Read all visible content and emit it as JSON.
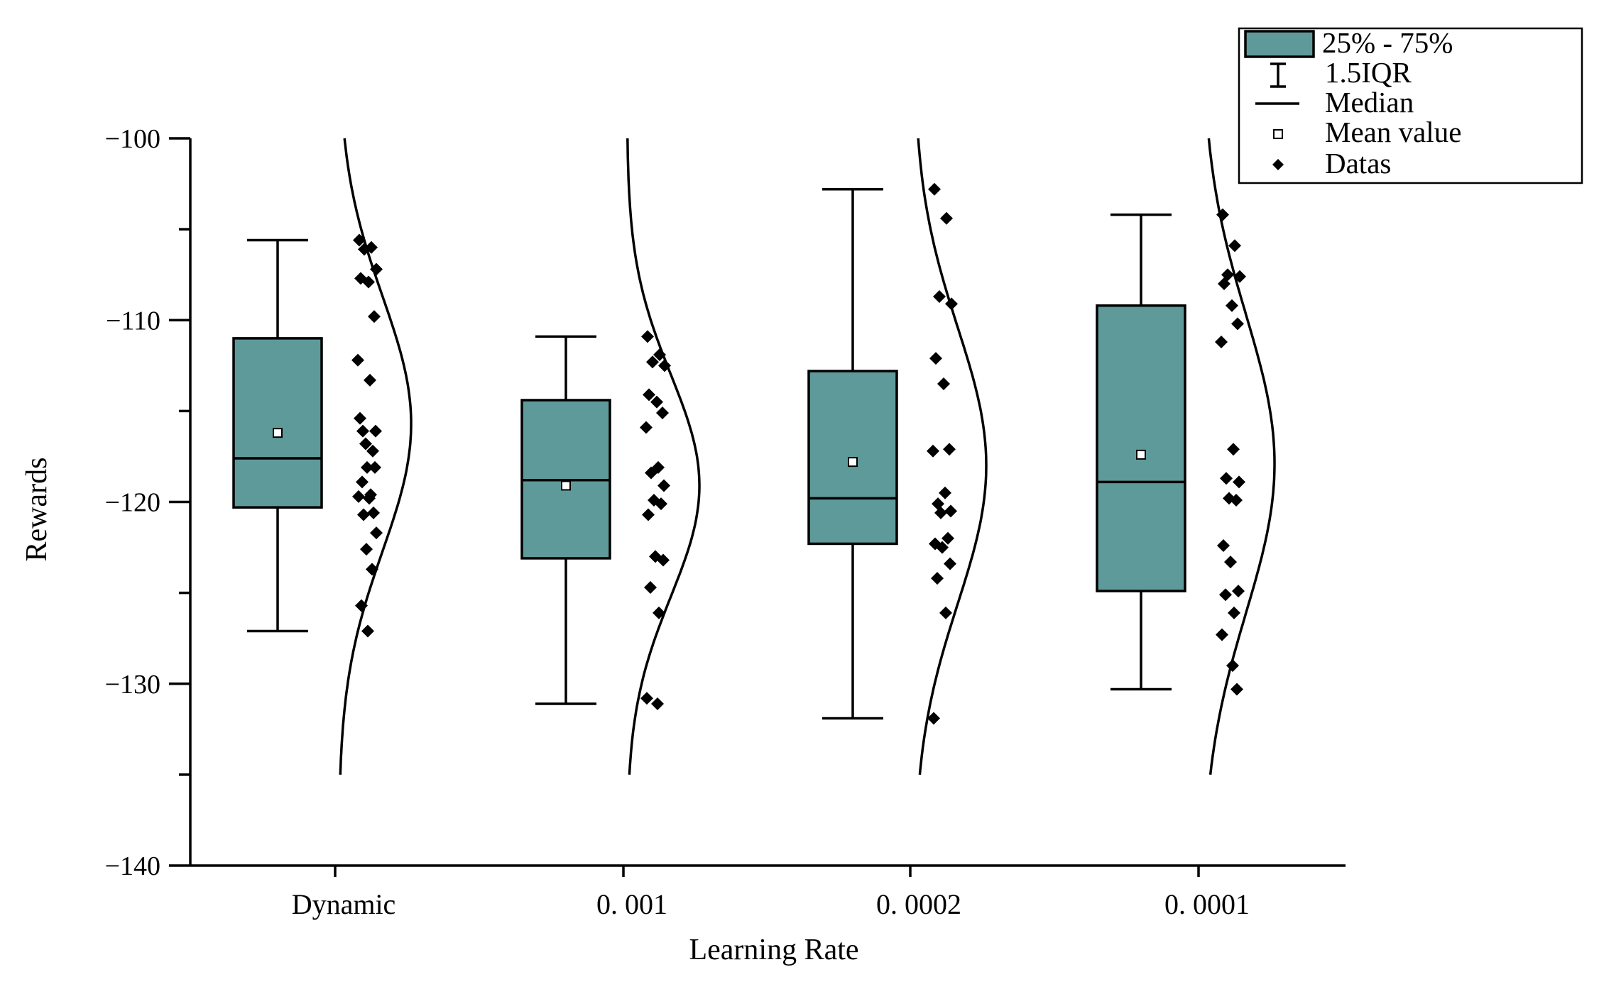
{
  "chart_data": {
    "type": "box",
    "title": "",
    "xlabel": "Learning Rate",
    "ylabel": "Rewards",
    "ylim": [
      -140,
      -100
    ],
    "yticks": [
      -140,
      -130,
      -120,
      -110,
      -100
    ],
    "ytick_labels": [
      "−140",
      "−130",
      "−120",
      "−110",
      "−100"
    ],
    "categories": [
      "Dynamic",
      "0. 001",
      "0. 0002",
      "0. 0001"
    ],
    "box_color": "#5f9a9a",
    "legend": {
      "position": "top-right",
      "entries": [
        {
          "type": "box",
          "label": "25% - 75%"
        },
        {
          "type": "whisker",
          "label": "1.5IQR"
        },
        {
          "type": "median",
          "label": "Median"
        },
        {
          "type": "mean",
          "label": "Mean value"
        },
        {
          "type": "data",
          "label": "Datas"
        }
      ]
    },
    "series": [
      {
        "name": "Dynamic",
        "whisker_low": -127.1,
        "q1": -120.3,
        "median": -117.6,
        "q3": -111.0,
        "whisker_high": -105.6,
        "mean": -116.2,
        "curve_mean": -115.7,
        "curve_sd": 7.0,
        "points": [
          -105.6,
          -106.0,
          -106.1,
          -107.2,
          -107.7,
          -107.9,
          -109.8,
          -112.2,
          -113.3,
          -116.1,
          -116.1,
          -116.8,
          -117.2,
          -115.4,
          -118.1,
          -118.1,
          -118.9,
          -119.6,
          -119.7,
          -119.8,
          -120.6,
          -120.7,
          -121.7,
          -122.6,
          -123.7,
          -125.7,
          -127.1
        ]
      },
      {
        "name": "0. 001",
        "whisker_low": -131.1,
        "q1": -123.1,
        "median": -118.8,
        "q3": -114.4,
        "whisker_high": -110.9,
        "mean": -119.1,
        "curve_mean": -119.1,
        "curve_sd": 6.1,
        "points": [
          -110.9,
          -111.9,
          -112.3,
          -112.5,
          -114.1,
          -114.5,
          -115.1,
          -115.9,
          -118.1,
          -118.4,
          -119.1,
          -119.9,
          -120.1,
          -120.7,
          -123.0,
          -123.2,
          -124.7,
          -126.1,
          -130.8,
          -131.1
        ]
      },
      {
        "name": "0. 0002",
        "whisker_low": -131.9,
        "q1": -122.3,
        "median": -119.8,
        "q3": -112.8,
        "whisker_high": -102.8,
        "mean": -117.8,
        "curve_mean": -118.0,
        "curve_sd": 7.6,
        "points": [
          -102.8,
          -104.4,
          -108.7,
          -109.1,
          -112.1,
          -113.5,
          -117.1,
          -117.2,
          -119.5,
          -120.1,
          -120.5,
          -120.6,
          -122.0,
          -122.3,
          -122.5,
          -123.4,
          -124.2,
          -126.1,
          -131.9
        ]
      },
      {
        "name": "0. 0001",
        "whisker_low": -130.3,
        "q1": -124.9,
        "median": -118.9,
        "q3": -109.2,
        "whisker_high": -104.2,
        "mean": -117.4,
        "curve_mean": -117.9,
        "curve_sd": 8.2,
        "points": [
          -104.2,
          -105.9,
          -107.5,
          -107.6,
          -108.0,
          -109.2,
          -110.2,
          -111.2,
          -117.1,
          -118.7,
          -118.9,
          -119.8,
          -119.9,
          -122.4,
          -123.3,
          -124.9,
          -125.1,
          -126.1,
          -127.3,
          -129.0,
          -130.3
        ]
      }
    ]
  }
}
